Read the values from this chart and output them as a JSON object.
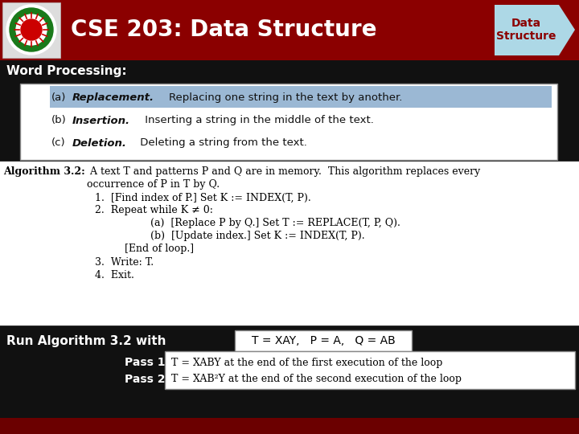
{
  "title": "CSE 203: Data Structure",
  "arrow_label": "Data\nStructure",
  "header_bg": "#8B0000",
  "header_text_color": "#FFFFFF",
  "arrow_bg": "#ADD8E6",
  "arrow_text_color": "#8B0000",
  "subheader_text": "Word Processing:",
  "subheader_bg": "#111111",
  "subheader_text_color": "#FFFFFF",
  "main_bg": "#111111",
  "box1_bg": "#FFFFFF",
  "box1_highlight_bg": "#9BB8D4",
  "footer_bg": "#6B0000",
  "run_text": "Run Algorithm 3.2 with",
  "run_formula_text": "T = XAY,   P = A,   Q = AB",
  "pass1_label": "Pass 1",
  "pass2_label": "Pass 2",
  "pass_box_text1": "T = XABY at the end of the first execution of the loop",
  "pass_box_text2": "T = XAB²Y at the end of the second execution of the loop",
  "algo_title": "Algorithm 3.2:",
  "algo_line1": " A text T and patterns P and Q are in memory.  This algorithm replaces every",
  "algo_line2": "occurrence of P in T by Q.",
  "algo_steps": [
    "1.  [Find index of P.] Set K := INDEX(T, P).",
    "2.  Repeat while K ≠ 0:",
    "        (a)  [Replace P by Q.] Set T := REPLACE(T, P, Q).",
    "        (b)  [Update index.] Set K := INDEX(T, P).",
    "     [End of loop.]",
    "3.  Write: T.",
    "4.  Exit."
  ]
}
